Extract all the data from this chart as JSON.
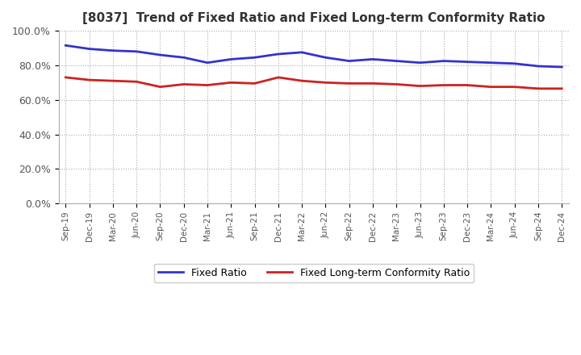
{
  "title": "[8037]  Trend of Fixed Ratio and Fixed Long-term Conformity Ratio",
  "x_labels": [
    "Sep-19",
    "Dec-19",
    "Mar-20",
    "Jun-20",
    "Sep-20",
    "Dec-20",
    "Mar-21",
    "Jun-21",
    "Sep-21",
    "Dec-21",
    "Mar-22",
    "Jun-22",
    "Sep-22",
    "Dec-22",
    "Mar-23",
    "Jun-23",
    "Sep-23",
    "Dec-23",
    "Mar-24",
    "Jun-24",
    "Sep-24",
    "Dec-24"
  ],
  "fixed_ratio": [
    91.5,
    89.5,
    88.5,
    88.0,
    86.0,
    84.5,
    81.5,
    83.5,
    84.5,
    86.5,
    87.5,
    84.5,
    82.5,
    83.5,
    82.5,
    81.5,
    82.5,
    82.0,
    81.5,
    81.0,
    79.5,
    79.0
  ],
  "fixed_lt_ratio": [
    73.0,
    71.5,
    71.0,
    70.5,
    67.5,
    69.0,
    68.5,
    70.0,
    69.5,
    73.0,
    71.0,
    70.0,
    69.5,
    69.5,
    69.0,
    68.0,
    68.5,
    68.5,
    67.5,
    67.5,
    66.5,
    66.5
  ],
  "fixed_ratio_color": "#3333cc",
  "fixed_lt_ratio_color": "#cc2222",
  "ylim": [
    0,
    100
  ],
  "yticks": [
    0,
    20,
    40,
    60,
    80,
    100
  ],
  "ytick_labels": [
    "0.0%",
    "20.0%",
    "40.0%",
    "60.0%",
    "80.0%",
    "100.0%"
  ],
  "grid_color": "#aaaaaa",
  "background_color": "#ffffff",
  "line_width": 2.0,
  "title_fontsize": 11
}
